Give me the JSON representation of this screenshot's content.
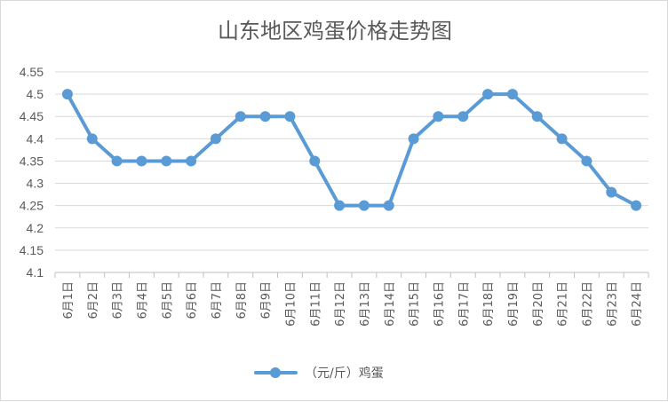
{
  "chart_data": {
    "type": "line",
    "title": "山东地区鸡蛋价格走势图",
    "categories": [
      "6月1日",
      "6月2日",
      "6月3日",
      "6月4日",
      "6月5日",
      "6月6日",
      "6月7日",
      "6月8日",
      "6月9日",
      "6月10日",
      "6月11日",
      "6月12日",
      "6月13日",
      "6月14日",
      "6月15日",
      "6月16日",
      "6月17日",
      "6月18日",
      "6月19日",
      "6月20日",
      "6月21日",
      "6月22日",
      "6月23日",
      "6月24日"
    ],
    "series": [
      {
        "name": "（元/斤）鸡蛋",
        "values": [
          4.5,
          4.4,
          4.35,
          4.35,
          4.35,
          4.35,
          4.4,
          4.45,
          4.45,
          4.45,
          4.35,
          4.25,
          4.25,
          4.25,
          4.4,
          4.45,
          4.45,
          4.5,
          4.5,
          4.45,
          4.4,
          4.35,
          4.28,
          4.25
        ],
        "color": "#5b9bd5"
      }
    ],
    "y_ticks": [
      "4.1",
      "4.15",
      "4.2",
      "4.25",
      "4.3",
      "4.35",
      "4.4",
      "4.45",
      "4.5",
      "4.55"
    ],
    "ylim": [
      4.1,
      4.55
    ],
    "grid": "horizontal",
    "legend": "bottom"
  }
}
